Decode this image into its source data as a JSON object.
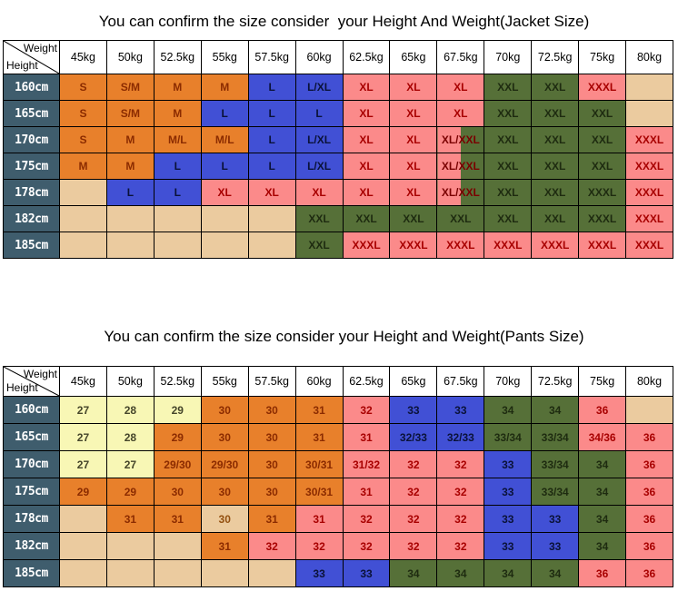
{
  "palette": {
    "orange": {
      "bg": "#E8802B",
      "fg": "#8B2B00"
    },
    "yellow": {
      "bg": "#F8F7B5",
      "fg": "#45452A"
    },
    "tan": {
      "bg": "#EBCB9F",
      "fg": "#935010"
    },
    "blue": {
      "bg": "#4150D5",
      "fg": "#0A1238"
    },
    "pink": {
      "bg": "#FB8A8A",
      "fg": "#A80000"
    },
    "green": {
      "bg": "#567038",
      "fg": "#1E2B10"
    },
    "split": {
      "fg": "#7A0000"
    },
    "rowheader": {
      "bg": "#3F5D6D",
      "fg": "#FFFFFF"
    },
    "border": "#000000"
  },
  "chart_data": [
    {
      "type": "table",
      "title": "You can confirm the size consider  your Height And Weight(Jacket Size)",
      "corner": {
        "top_right": "Weight",
        "bottom_left": "Height"
      },
      "columns": [
        "45kg",
        "50kg",
        "52.5kg",
        "55kg",
        "57.5kg",
        "60kg",
        "62.5kg",
        "65kg",
        "67.5kg",
        "70kg",
        "72.5kg",
        "75kg",
        "80kg"
      ],
      "rows": [
        {
          "height": "160cm",
          "cells": [
            {
              "t": "S",
              "c": "orange"
            },
            {
              "t": "S/M",
              "c": "orange"
            },
            {
              "t": "M",
              "c": "orange"
            },
            {
              "t": "M",
              "c": "orange"
            },
            {
              "t": "L",
              "c": "blue"
            },
            {
              "t": "L/XL",
              "c": "blue"
            },
            {
              "t": "XL",
              "c": "pink"
            },
            {
              "t": "XL",
              "c": "pink"
            },
            {
              "t": "XL",
              "c": "pink"
            },
            {
              "t": "XXL",
              "c": "green"
            },
            {
              "t": "XXL",
              "c": "green"
            },
            {
              "t": "XXXL",
              "c": "pink"
            },
            {
              "t": "",
              "c": "tan"
            }
          ]
        },
        {
          "height": "165cm",
          "cells": [
            {
              "t": "S",
              "c": "orange"
            },
            {
              "t": "S/M",
              "c": "orange"
            },
            {
              "t": "M",
              "c": "orange"
            },
            {
              "t": "L",
              "c": "blue"
            },
            {
              "t": "L",
              "c": "blue"
            },
            {
              "t": "L",
              "c": "blue"
            },
            {
              "t": "XL",
              "c": "pink"
            },
            {
              "t": "XL",
              "c": "pink"
            },
            {
              "t": "XL",
              "c": "pink"
            },
            {
              "t": "XXL",
              "c": "green"
            },
            {
              "t": "XXL",
              "c": "green"
            },
            {
              "t": "XXL",
              "c": "green"
            },
            {
              "t": "",
              "c": "tan"
            }
          ]
        },
        {
          "height": "170cm",
          "cells": [
            {
              "t": "S",
              "c": "orange"
            },
            {
              "t": "M",
              "c": "orange"
            },
            {
              "t": "M/L",
              "c": "orange"
            },
            {
              "t": "M/L",
              "c": "orange"
            },
            {
              "t": "L",
              "c": "blue"
            },
            {
              "t": "L/XL",
              "c": "blue"
            },
            {
              "t": "XL",
              "c": "pink"
            },
            {
              "t": "XL",
              "c": "pink"
            },
            {
              "t": "XL/XXL",
              "c": "split"
            },
            {
              "t": "XXL",
              "c": "green"
            },
            {
              "t": "XXL",
              "c": "green"
            },
            {
              "t": "XXL",
              "c": "green"
            },
            {
              "t": "XXXL",
              "c": "pink"
            }
          ]
        },
        {
          "height": "175cm",
          "cells": [
            {
              "t": "M",
              "c": "orange"
            },
            {
              "t": "M",
              "c": "orange"
            },
            {
              "t": "L",
              "c": "blue"
            },
            {
              "t": "L",
              "c": "blue"
            },
            {
              "t": "L",
              "c": "blue"
            },
            {
              "t": "L/XL",
              "c": "blue"
            },
            {
              "t": "XL",
              "c": "pink"
            },
            {
              "t": "XL",
              "c": "pink"
            },
            {
              "t": "XL/XXL",
              "c": "split"
            },
            {
              "t": "XXL",
              "c": "green"
            },
            {
              "t": "XXL",
              "c": "green"
            },
            {
              "t": "XXL",
              "c": "green"
            },
            {
              "t": "XXXL",
              "c": "pink"
            }
          ]
        },
        {
          "height": "178cm",
          "cells": [
            {
              "t": "",
              "c": "tan"
            },
            {
              "t": "L",
              "c": "blue"
            },
            {
              "t": "L",
              "c": "blue"
            },
            {
              "t": "XL",
              "c": "pink"
            },
            {
              "t": "XL",
              "c": "pink"
            },
            {
              "t": "XL",
              "c": "pink"
            },
            {
              "t": "XL",
              "c": "pink"
            },
            {
              "t": "XL",
              "c": "pink"
            },
            {
              "t": "XL/XXL",
              "c": "split"
            },
            {
              "t": "XXL",
              "c": "green"
            },
            {
              "t": "XXL",
              "c": "green"
            },
            {
              "t": "XXXL",
              "c": "green"
            },
            {
              "t": "XXXL",
              "c": "pink"
            }
          ]
        },
        {
          "height": "182cm",
          "cells": [
            {
              "t": "",
              "c": "tan"
            },
            {
              "t": "",
              "c": "tan"
            },
            {
              "t": "",
              "c": "tan"
            },
            {
              "t": "",
              "c": "tan"
            },
            {
              "t": "",
              "c": "tan"
            },
            {
              "t": "XXL",
              "c": "green"
            },
            {
              "t": "XXL",
              "c": "green"
            },
            {
              "t": "XXL",
              "c": "green"
            },
            {
              "t": "XXL",
              "c": "green"
            },
            {
              "t": "XXL",
              "c": "green"
            },
            {
              "t": "XXL",
              "c": "green"
            },
            {
              "t": "XXXL",
              "c": "green"
            },
            {
              "t": "XXXL",
              "c": "pink"
            }
          ]
        },
        {
          "height": "185cm",
          "cells": [
            {
              "t": "",
              "c": "tan"
            },
            {
              "t": "",
              "c": "tan"
            },
            {
              "t": "",
              "c": "tan"
            },
            {
              "t": "",
              "c": "tan"
            },
            {
              "t": "",
              "c": "tan"
            },
            {
              "t": "XXL",
              "c": "green"
            },
            {
              "t": "XXXL",
              "c": "pink"
            },
            {
              "t": "XXXL",
              "c": "pink"
            },
            {
              "t": "XXXL",
              "c": "pink"
            },
            {
              "t": "XXXL",
              "c": "pink"
            },
            {
              "t": "XXXL",
              "c": "pink"
            },
            {
              "t": "XXXL",
              "c": "pink"
            },
            {
              "t": "XXXL",
              "c": "pink"
            }
          ]
        }
      ]
    },
    {
      "type": "table",
      "title": "You can confirm the size consider your Height and Weight(Pants Size)",
      "corner": {
        "top_right": "Weight",
        "bottom_left": "Height"
      },
      "columns": [
        "45kg",
        "50kg",
        "52.5kg",
        "55kg",
        "57.5kg",
        "60kg",
        "62.5kg",
        "65kg",
        "67.5kg",
        "70kg",
        "72.5kg",
        "75kg",
        "80kg"
      ],
      "rows": [
        {
          "height": "160cm",
          "cells": [
            {
              "t": "27",
              "c": "yellow"
            },
            {
              "t": "28",
              "c": "yellow"
            },
            {
              "t": "29",
              "c": "yellow"
            },
            {
              "t": "30",
              "c": "orange"
            },
            {
              "t": "30",
              "c": "orange"
            },
            {
              "t": "31",
              "c": "orange"
            },
            {
              "t": "32",
              "c": "pink"
            },
            {
              "t": "33",
              "c": "blue"
            },
            {
              "t": "33",
              "c": "blue"
            },
            {
              "t": "34",
              "c": "green"
            },
            {
              "t": "34",
              "c": "green"
            },
            {
              "t": "36",
              "c": "pink"
            },
            {
              "t": "",
              "c": "tan"
            }
          ]
        },
        {
          "height": "165cm",
          "cells": [
            {
              "t": "27",
              "c": "yellow"
            },
            {
              "t": "28",
              "c": "yellow"
            },
            {
              "t": "29",
              "c": "orange"
            },
            {
              "t": "30",
              "c": "orange"
            },
            {
              "t": "30",
              "c": "orange"
            },
            {
              "t": "31",
              "c": "orange"
            },
            {
              "t": "31",
              "c": "pink"
            },
            {
              "t": "32/33",
              "c": "blue"
            },
            {
              "t": "32/33",
              "c": "blue"
            },
            {
              "t": "33/34",
              "c": "green"
            },
            {
              "t": "33/34",
              "c": "green"
            },
            {
              "t": "34/36",
              "c": "pink"
            },
            {
              "t": "36",
              "c": "pink"
            }
          ]
        },
        {
          "height": "170cm",
          "cells": [
            {
              "t": "27",
              "c": "yellow"
            },
            {
              "t": "27",
              "c": "yellow"
            },
            {
              "t": "29/30",
              "c": "orange"
            },
            {
              "t": "29/30",
              "c": "orange"
            },
            {
              "t": "30",
              "c": "orange"
            },
            {
              "t": "30/31",
              "c": "orange"
            },
            {
              "t": "31/32",
              "c": "pink"
            },
            {
              "t": "32",
              "c": "pink"
            },
            {
              "t": "32",
              "c": "pink"
            },
            {
              "t": "33",
              "c": "blue"
            },
            {
              "t": "33/34",
              "c": "green"
            },
            {
              "t": "34",
              "c": "green"
            },
            {
              "t": "36",
              "c": "pink"
            }
          ]
        },
        {
          "height": "175cm",
          "cells": [
            {
              "t": "29",
              "c": "orange"
            },
            {
              "t": "29",
              "c": "orange"
            },
            {
              "t": "30",
              "c": "orange"
            },
            {
              "t": "30",
              "c": "orange"
            },
            {
              "t": "30",
              "c": "orange"
            },
            {
              "t": "30/31",
              "c": "orange"
            },
            {
              "t": "31",
              "c": "pink"
            },
            {
              "t": "32",
              "c": "pink"
            },
            {
              "t": "32",
              "c": "pink"
            },
            {
              "t": "33",
              "c": "blue"
            },
            {
              "t": "33/34",
              "c": "green"
            },
            {
              "t": "34",
              "c": "green"
            },
            {
              "t": "36",
              "c": "pink"
            }
          ]
        },
        {
          "height": "178cm",
          "cells": [
            {
              "t": "",
              "c": "tan"
            },
            {
              "t": "31",
              "c": "orange"
            },
            {
              "t": "31",
              "c": "orange"
            },
            {
              "t": "30",
              "c": "tan"
            },
            {
              "t": "31",
              "c": "orange"
            },
            {
              "t": "31",
              "c": "pink"
            },
            {
              "t": "32",
              "c": "pink"
            },
            {
              "t": "32",
              "c": "pink"
            },
            {
              "t": "32",
              "c": "pink"
            },
            {
              "t": "33",
              "c": "blue"
            },
            {
              "t": "33",
              "c": "blue"
            },
            {
              "t": "34",
              "c": "green"
            },
            {
              "t": "36",
              "c": "pink"
            }
          ]
        },
        {
          "height": "182cm",
          "cells": [
            {
              "t": "",
              "c": "tan"
            },
            {
              "t": "",
              "c": "tan"
            },
            {
              "t": "",
              "c": "tan"
            },
            {
              "t": "31",
              "c": "orange"
            },
            {
              "t": "32",
              "c": "pink"
            },
            {
              "t": "32",
              "c": "pink"
            },
            {
              "t": "32",
              "c": "pink"
            },
            {
              "t": "32",
              "c": "pink"
            },
            {
              "t": "32",
              "c": "pink"
            },
            {
              "t": "33",
              "c": "blue"
            },
            {
              "t": "33",
              "c": "blue"
            },
            {
              "t": "34",
              "c": "green"
            },
            {
              "t": "36",
              "c": "pink"
            }
          ]
        },
        {
          "height": "185cm",
          "cells": [
            {
              "t": "",
              "c": "tan"
            },
            {
              "t": "",
              "c": "tan"
            },
            {
              "t": "",
              "c": "tan"
            },
            {
              "t": "",
              "c": "tan"
            },
            {
              "t": "",
              "c": "tan"
            },
            {
              "t": "33",
              "c": "blue"
            },
            {
              "t": "33",
              "c": "blue"
            },
            {
              "t": "34",
              "c": "green"
            },
            {
              "t": "34",
              "c": "green"
            },
            {
              "t": "34",
              "c": "green"
            },
            {
              "t": "34",
              "c": "green"
            },
            {
              "t": "36",
              "c": "pink"
            },
            {
              "t": "36",
              "c": "pink"
            }
          ]
        }
      ]
    }
  ]
}
